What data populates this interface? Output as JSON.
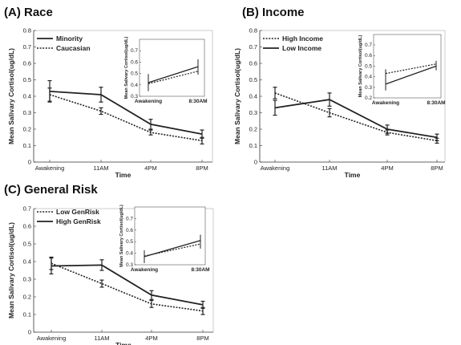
{
  "chart_data": [
    {
      "type": "line",
      "title": "(A)  Race",
      "xlabel": "Time",
      "ylabel": "Mean Salivary Cortisol(ug/dL)",
      "categories": [
        "Awakening",
        "11AM",
        "4PM",
        "8PM"
      ],
      "ylim": [
        0,
        0.8
      ],
      "yticks": [
        "0",
        "0.1",
        "0.2",
        "0.3",
        "0.4",
        "0.5",
        "0.6",
        "0.7",
        "0.8"
      ],
      "grid": false,
      "legend_position": "top-left",
      "series": [
        {
          "name": "Minority",
          "style": "solid",
          "values": [
            0.43,
            0.41,
            0.23,
            0.17
          ],
          "errors": [
            0.065,
            0.045,
            0.03,
            0.025
          ]
        },
        {
          "name": "Caucasian",
          "style": "dotted",
          "values": [
            0.41,
            0.31,
            0.18,
            0.13
          ],
          "errors": [
            0.04,
            0.02,
            0.015,
            0.02
          ]
        }
      ],
      "inset": {
        "ylabel": "Mean Salivary Cortisol(ug/dL)",
        "categories": [
          "Awakening",
          "8:30AM"
        ],
        "ylim": [
          0.3,
          0.7
        ],
        "yticks": [
          "0.3",
          "0.4",
          "0.5",
          "0.6",
          "0.7"
        ],
        "series": [
          {
            "name": "Minority",
            "style": "solid",
            "values": [
              0.42,
              0.56
            ],
            "errors": [
              0.075,
              0.065
            ]
          },
          {
            "name": "Caucasian",
            "style": "dotted",
            "values": [
              0.41,
              0.52
            ],
            "errors": [
              0.03,
              0.03
            ]
          }
        ]
      }
    },
    {
      "type": "line",
      "title": "(B)  Income",
      "xlabel": "Time",
      "ylabel": "Mean Salivary Cortisol(ug/dL)",
      "categories": [
        "Awakening",
        "11AM",
        "4PM",
        "8PM"
      ],
      "ylim": [
        0,
        0.8
      ],
      "yticks": [
        "0",
        "0.1",
        "0.2",
        "0.3",
        "0.4",
        "0.5",
        "0.6",
        "0.7",
        "0.8"
      ],
      "grid": false,
      "legend_position": "top-left",
      "series": [
        {
          "name": "High Income",
          "style": "dotted",
          "values": [
            0.42,
            0.3,
            0.18,
            0.13
          ],
          "errors": [
            0.035,
            0.025,
            0.015,
            0.015
          ]
        },
        {
          "name": "Low Income",
          "style": "solid",
          "values": [
            0.33,
            0.38,
            0.2,
            0.15
          ],
          "errors": [
            0.045,
            0.04,
            0.025,
            0.02
          ]
        }
      ],
      "inset": {
        "ylabel": "Mean Salivary Cortisol(ug/dL)",
        "categories": [
          "Awakening",
          "8:30AM"
        ],
        "ylim": [
          0.2,
          0.7
        ],
        "yticks": [
          "0.2",
          "0.3",
          "0.4",
          "0.5",
          "0.6",
          "0.7"
        ],
        "series": [
          {
            "name": "High Income",
            "style": "dotted",
            "values": [
              0.43,
              0.52
            ],
            "errors": [
              0.04,
              0.03
            ]
          },
          {
            "name": "Low Income",
            "style": "solid",
            "values": [
              0.33,
              0.5
            ],
            "errors": [
              0.06,
              0.04
            ]
          }
        ]
      }
    },
    {
      "type": "line",
      "title": "(C)  General Risk",
      "xlabel": "Time",
      "ylabel": "Mean Salivary Cortisol(ug/dL)",
      "categories": [
        "Awakening",
        "11AM",
        "4PM",
        "8PM"
      ],
      "ylim": [
        0,
        0.7
      ],
      "yticks": [
        "0",
        "0.1",
        "0.2",
        "0.3",
        "0.4",
        "0.5",
        "0.6",
        "0.7"
      ],
      "grid": false,
      "legend_position": "top-left",
      "series": [
        {
          "name": "Low GenRisk",
          "style": "dotted",
          "values": [
            0.39,
            0.275,
            0.16,
            0.12
          ],
          "errors": [
            0.035,
            0.02,
            0.02,
            0.02
          ]
        },
        {
          "name": "High GenRisk",
          "style": "solid",
          "values": [
            0.375,
            0.38,
            0.21,
            0.155
          ],
          "errors": [
            0.045,
            0.03,
            0.025,
            0.02
          ]
        }
      ],
      "inset": {
        "ylabel": "Mean Salivary Cortisol(ug/dL)",
        "categories": [
          "Awakening",
          "8:30AM"
        ],
        "ylim": [
          0.3,
          0.7
        ],
        "yticks": [
          "0.3",
          "0.4",
          "0.5",
          "0.6",
          "0.7"
        ],
        "series": [
          {
            "name": "Low GenRisk",
            "style": "dotted",
            "values": [
              0.375,
              0.48
            ],
            "errors": [
              0.035,
              0.04
            ]
          },
          {
            "name": "High GenRisk",
            "style": "solid",
            "values": [
              0.37,
              0.51
            ],
            "errors": [
              0.055,
              0.05
            ]
          }
        ]
      }
    }
  ]
}
